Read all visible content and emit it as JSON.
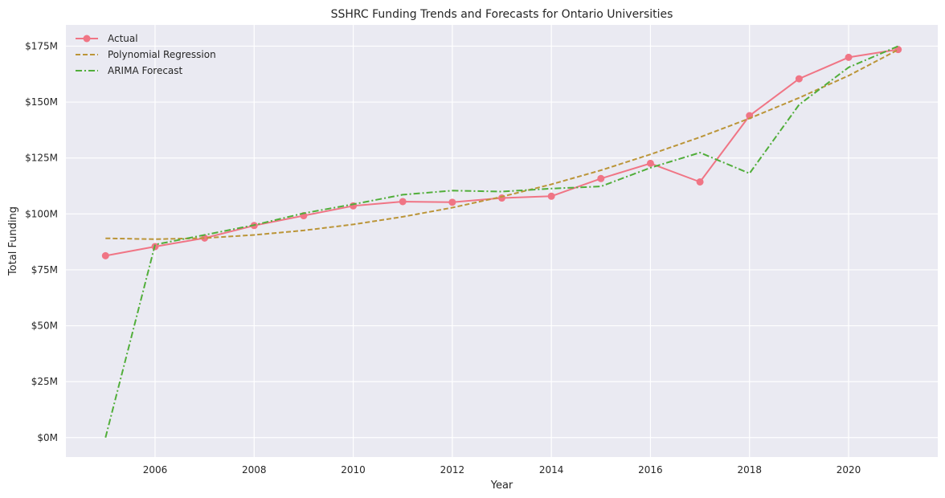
{
  "chart_data": {
    "type": "line",
    "title": "SSHRC Funding Trends and Forecasts for Ontario Universities",
    "xlabel": "Year",
    "ylabel": "Total Funding",
    "x": [
      2005,
      2006,
      2007,
      2008,
      2009,
      2010,
      2011,
      2012,
      2013,
      2014,
      2015,
      2016,
      2017,
      2018,
      2019,
      2020,
      2021
    ],
    "xlim": [
      2004.2,
      2021.8
    ],
    "ylim": [
      -8.7,
      184.5
    ],
    "xticks": [
      2006,
      2008,
      2010,
      2012,
      2014,
      2016,
      2018,
      2020
    ],
    "xtick_labels": [
      "2006",
      "2008",
      "2010",
      "2012",
      "2014",
      "2016",
      "2018",
      "2020"
    ],
    "yticks": [
      0,
      25,
      50,
      75,
      100,
      125,
      150,
      175
    ],
    "ytick_labels": [
      "$0M",
      "$25M",
      "$50M",
      "$75M",
      "$100M",
      "$125M",
      "$150M",
      "$175M"
    ],
    "grid": true,
    "legend_position": "top-left",
    "series": [
      {
        "name": "Actual",
        "style": "solid",
        "marker": "circle",
        "color": "#f07585",
        "values": [
          81.3,
          85.4,
          89.2,
          94.8,
          99.2,
          103.6,
          105.5,
          105.2,
          107.1,
          107.9,
          115.8,
          122.6,
          114.3,
          143.9,
          160.4,
          170.0,
          173.5
        ]
      },
      {
        "name": "Polynomial Regression",
        "style": "dashed",
        "color": "#bb9538",
        "values": [
          89.1,
          88.7,
          89.2,
          90.6,
          92.6,
          95.3,
          98.7,
          102.8,
          107.7,
          113.2,
          119.5,
          126.6,
          134.3,
          142.7,
          151.9,
          161.8,
          173.4
        ]
      },
      {
        "name": "ARIMA Forecast",
        "style": "dashdot",
        "color": "#51ae3a",
        "values": [
          0.0,
          86.3,
          90.6,
          95.0,
          100.3,
          104.3,
          108.6,
          110.4,
          110.0,
          111.3,
          112.3,
          120.6,
          127.4,
          118.1,
          148.8,
          165.5,
          175.0
        ]
      }
    ]
  }
}
